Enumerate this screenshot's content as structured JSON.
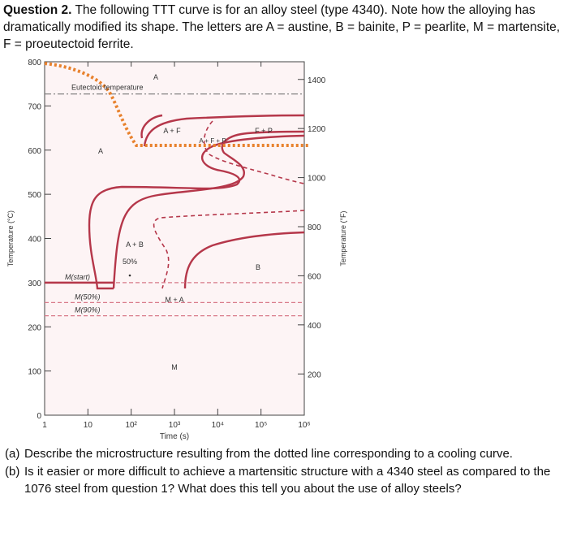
{
  "question": {
    "number": "Question 2.",
    "intro": "The following TTT curve is for an alloy steel (type 4340). Note how the alloying has dramatically modified its shape. The letters are A = austine, B = bainite, P = pearlite, M = martensite, F = proeutectoid ferrite."
  },
  "chart_data": {
    "type": "line",
    "xlabel": "Time (s)",
    "ylabel_left": "Temperature (°C)",
    "ylabel_right": "Temperature (°F)",
    "x_scale": "log",
    "x_ticks": [
      "1",
      "10",
      "10²",
      "10³",
      "10⁴",
      "10⁵",
      "10⁶"
    ],
    "y_ticks_left": [
      "0",
      "100",
      "200",
      "300",
      "400",
      "500",
      "600",
      "700",
      "800"
    ],
    "y_ticks_right": [
      "200",
      "400",
      "600",
      "800",
      "1000",
      "1200",
      "1400"
    ],
    "ylim_c": [
      0,
      800
    ],
    "xlim_s": [
      1,
      1000000
    ],
    "eutectoid_label": "Eutectoid temperature",
    "eutectoid_temp_c": 727,
    "martensite_lines": [
      {
        "label": "M(start)",
        "temp_c": 300
      },
      {
        "label": "M(50%)",
        "temp_c": 255
      },
      {
        "label": "M(90%)",
        "temp_c": 225
      }
    ],
    "region_labels": {
      "A_top": "A",
      "A_left": "A",
      "AF": "A + F",
      "AFP": "A + F + P",
      "FP": "F + P",
      "AB": "A + B",
      "pct50": "50%",
      "B": "B",
      "MA": "M + A",
      "M": "M"
    },
    "cooling_path_color": "#e8822e",
    "curve_color": "#b5374a"
  },
  "questions": [
    {
      "label": "(a)",
      "text": "Describe the microstructure resulting from the dotted line corresponding to a cooling curve."
    },
    {
      "label": "(b)",
      "text": "Is it easier or more difficult to achieve a martensitic structure with a 4340 steel as compared to the 1076 steel from question 1? What does this tell you about the use of alloy steels?"
    }
  ]
}
